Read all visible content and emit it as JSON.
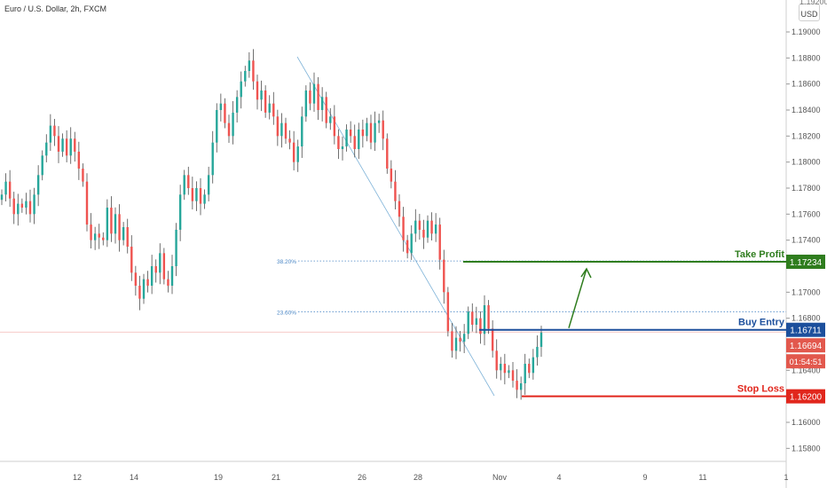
{
  "chart_data": {
    "type": "candlestick",
    "title": "Euro / U.S. Dollar, 2h, FXCM",
    "currency": "USD",
    "ylim": [
      1.157,
      1.1915
    ],
    "y_ticks": [
      "1.19000",
      "1.18800",
      "1.18600",
      "1.18400",
      "1.18200",
      "1.18000",
      "1.17800",
      "1.17600",
      "1.17400",
      "1.17000",
      "1.16800",
      "1.16400",
      "1.16200",
      "1.16000",
      "1.15800"
    ],
    "x_ticks": [
      "12",
      "14",
      "19",
      "21",
      "26",
      "28",
      "Nov",
      "4",
      "9",
      "11",
      "1"
    ],
    "price_path": [
      1.1775,
      1.1785,
      1.1772,
      1.176,
      1.1768,
      1.1765,
      1.177,
      1.176,
      1.1775,
      1.179,
      1.1805,
      1.1815,
      1.1828,
      1.182,
      1.1808,
      1.1818,
      1.1805,
      1.1818,
      1.1808,
      1.1795,
      1.1785,
      1.1752,
      1.174,
      1.1745,
      1.1742,
      1.174,
      1.1765,
      1.1745,
      1.176,
      1.174,
      1.175,
      1.1735,
      1.1715,
      1.1705,
      1.1695,
      1.171,
      1.1705,
      1.172,
      1.1715,
      1.173,
      1.171,
      1.1705,
      1.172,
      1.1748,
      1.1775,
      1.179,
      1.178,
      1.177,
      1.178,
      1.1768,
      1.1775,
      1.179,
      1.1815,
      1.184,
      1.1845,
      1.183,
      1.182,
      1.1838,
      1.185,
      1.1862,
      1.187,
      1.1878,
      1.1862,
      1.1848,
      1.1855,
      1.1838,
      1.1845,
      1.1835,
      1.182,
      1.183,
      1.1818,
      1.1815,
      1.18,
      1.1812,
      1.1835,
      1.1855,
      1.1845,
      1.186,
      1.184,
      1.185,
      1.183,
      1.1835,
      1.182,
      1.181,
      1.1812,
      1.1825,
      1.182,
      1.181,
      1.1825,
      1.182,
      1.183,
      1.1815,
      1.183,
      1.1832,
      1.1818,
      1.1795,
      1.1785,
      1.177,
      1.1758,
      1.174,
      1.173,
      1.1745,
      1.1755,
      1.1748,
      1.1742,
      1.1755,
      1.1745,
      1.1752,
      1.1725,
      1.17,
      1.167,
      1.1655,
      1.1665,
      1.1662,
      1.1668,
      1.1685,
      1.1675,
      1.168,
      1.1668,
      1.169,
      1.1672,
      1.1655,
      1.164,
      1.1645,
      1.1638,
      1.164,
      1.1632,
      1.1625,
      1.163,
      1.1645,
      1.1638,
      1.165,
      1.1658,
      1.1669
    ],
    "fib_levels": [
      {
        "label": "38.20%",
        "value": 1.1724
      },
      {
        "label": "23.60%",
        "value": 1.1685
      }
    ],
    "levels": [
      {
        "name": "Take Profit",
        "value": 1.17234,
        "value_label": "1.17234",
        "color": "#2f7d1e"
      },
      {
        "name": "Buy Entry",
        "value": 1.16711,
        "value_label": "1.16711",
        "color": "#1c4f9c"
      },
      {
        "name": "Stop Loss",
        "value": 1.162,
        "value_label": "1.16200",
        "color": "#e1261c"
      }
    ],
    "current_price": {
      "value": 1.16694,
      "label": "1.16694",
      "countdown": "01:54:51",
      "color": "#e2584d"
    },
    "grid": false,
    "colors": {
      "up": "#26a69a",
      "down": "#ef5350",
      "wick": "#4d4d4d",
      "trend": "#7fb3d8"
    }
  }
}
